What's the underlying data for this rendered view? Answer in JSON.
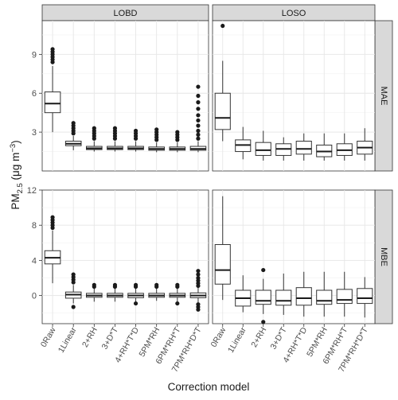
{
  "chart_data": {
    "type": "box",
    "ylabel_main": "PM",
    "ylabel_sub": "2.5",
    "ylabel_unit": " (μg m",
    "ylabel_sup": "−3",
    "ylabel_close": ")",
    "xlabel": "Correction model",
    "facet_cols": [
      "LOBD",
      "LOSO"
    ],
    "facet_rows": [
      "MAE",
      "MBE"
    ],
    "categories": [
      "0Raw",
      "1Linear",
      "2+RH",
      "3+D*T",
      "4+RH*T*D",
      "5PM*RH",
      "6PM*RH*T",
      "7PM*RH*D*T"
    ],
    "rows": [
      {
        "name": "MAE",
        "ylim": [
          0,
          11.6
        ],
        "ticks": [
          3,
          6,
          9
        ],
        "tick_labels": [
          "3",
          "6",
          "9"
        ],
        "panels": [
          {
            "col": "LOBD",
            "boxes": [
              {
                "lo": 3.0,
                "q1": 4.5,
                "med": 5.2,
                "q3": 6.1,
                "hi": 8.1,
                "out": [
                  8.4,
                  8.6,
                  8.8,
                  9.0,
                  9.2,
                  9.4
                ]
              },
              {
                "lo": 1.6,
                "q1": 1.95,
                "med": 2.1,
                "q3": 2.3,
                "hi": 2.7,
                "out": [
                  2.9,
                  3.1,
                  3.3,
                  3.5,
                  3.7
                ]
              },
              {
                "lo": 1.5,
                "q1": 1.65,
                "med": 1.75,
                "q3": 1.9,
                "hi": 2.3,
                "out": [
                  2.5,
                  2.7,
                  2.9,
                  3.1,
                  3.3
                ]
              },
              {
                "lo": 1.5,
                "q1": 1.65,
                "med": 1.75,
                "q3": 1.9,
                "hi": 2.3,
                "out": [
                  2.5,
                  2.7,
                  2.9,
                  3.1,
                  3.3
                ]
              },
              {
                "lo": 1.5,
                "q1": 1.65,
                "med": 1.75,
                "q3": 1.9,
                "hi": 2.3,
                "out": [
                  2.5,
                  2.7,
                  2.9,
                  3.1
                ]
              },
              {
                "lo": 1.45,
                "q1": 1.6,
                "med": 1.7,
                "q3": 1.85,
                "hi": 2.2,
                "out": [
                  2.4,
                  2.6,
                  2.8,
                  3.0,
                  3.2
                ]
              },
              {
                "lo": 1.45,
                "q1": 1.6,
                "med": 1.7,
                "q3": 1.85,
                "hi": 2.2,
                "out": [
                  2.4,
                  2.6,
                  2.8,
                  3.0
                ]
              },
              {
                "lo": 1.45,
                "q1": 1.6,
                "med": 1.7,
                "q3": 1.9,
                "hi": 2.3,
                "out": [
                  2.5,
                  2.8,
                  3.1,
                  3.5,
                  3.9,
                  4.3,
                  4.8,
                  5.3,
                  5.8,
                  6.5
                ]
              }
            ]
          },
          {
            "col": "LOSO",
            "boxes": [
              {
                "lo": 2.3,
                "q1": 3.2,
                "med": 4.1,
                "q3": 6.0,
                "hi": 8.5,
                "out": [
                  11.2
                ]
              },
              {
                "lo": 0.9,
                "q1": 1.5,
                "med": 2.0,
                "q3": 2.4,
                "hi": 3.4,
                "out": []
              },
              {
                "lo": 0.8,
                "q1": 1.2,
                "med": 1.6,
                "q3": 2.2,
                "hi": 3.1,
                "out": []
              },
              {
                "lo": 0.8,
                "q1": 1.2,
                "med": 1.7,
                "q3": 2.1,
                "hi": 2.6,
                "out": []
              },
              {
                "lo": 0.8,
                "q1": 1.3,
                "med": 1.7,
                "q3": 2.3,
                "hi": 2.9,
                "out": []
              },
              {
                "lo": 0.8,
                "q1": 1.1,
                "med": 1.5,
                "q3": 2.0,
                "hi": 2.9,
                "out": []
              },
              {
                "lo": 0.8,
                "q1": 1.2,
                "med": 1.6,
                "q3": 2.1,
                "hi": 2.9,
                "out": []
              },
              {
                "lo": 0.8,
                "q1": 1.3,
                "med": 1.8,
                "q3": 2.3,
                "hi": 3.3,
                "out": []
              }
            ]
          }
        ]
      },
      {
        "name": "MBE",
        "ylim": [
          -3.2,
          12.0
        ],
        "ticks": [
          0,
          4,
          8,
          12
        ],
        "tick_labels": [
          "0",
          "4",
          "8",
          "12"
        ],
        "panels": [
          {
            "col": "LOBD",
            "boxes": [
              {
                "lo": 1.4,
                "q1": 3.6,
                "med": 4.3,
                "q3": 5.1,
                "hi": 7.4,
                "out": [
                  7.7,
                  8.0,
                  8.3,
                  8.6,
                  8.9
                ]
              },
              {
                "lo": -0.9,
                "q1": -0.3,
                "med": 0.1,
                "q3": 0.4,
                "hi": 1.2,
                "out": [
                  -1.3,
                  1.5,
                  1.8,
                  2.1,
                  2.4
                ]
              },
              {
                "lo": -0.7,
                "q1": -0.2,
                "med": 0.0,
                "q3": 0.25,
                "hi": 0.8,
                "out": [
                  1.0,
                  1.2
                ]
              },
              {
                "lo": -0.7,
                "q1": -0.2,
                "med": 0.0,
                "q3": 0.25,
                "hi": 0.8,
                "out": [
                  1.0,
                  1.2
                ]
              },
              {
                "lo": -0.7,
                "q1": -0.25,
                "med": 0.0,
                "q3": 0.25,
                "hi": 0.8,
                "out": [
                  -0.9,
                  1.0,
                  1.2
                ]
              },
              {
                "lo": -0.6,
                "q1": -0.2,
                "med": 0.0,
                "q3": 0.25,
                "hi": 0.8,
                "out": [
                  1.0,
                  1.2
                ]
              },
              {
                "lo": -0.7,
                "q1": -0.2,
                "med": 0.0,
                "q3": 0.25,
                "hi": 0.8,
                "out": [
                  -0.9,
                  1.0,
                  1.2
                ]
              },
              {
                "lo": -0.8,
                "q1": -0.25,
                "med": 0.0,
                "q3": 0.3,
                "hi": 0.9,
                "out": [
                  -1.0,
                  -1.3,
                  -1.6,
                  1.1,
                  1.4,
                  1.7,
                  2.0,
                  2.4,
                  2.8
                ]
              }
            ]
          },
          {
            "col": "LOSO",
            "boxes": [
              {
                "lo": -0.5,
                "q1": 1.3,
                "med": 2.9,
                "q3": 5.8,
                "hi": 11.3,
                "out": []
              },
              {
                "lo": -1.9,
                "q1": -1.2,
                "med": -0.3,
                "q3": 0.6,
                "hi": 2.3,
                "out": []
              },
              {
                "lo": -2.1,
                "q1": -1.0,
                "med": -0.6,
                "q3": 0.6,
                "hi": 1.9,
                "out": [
                  -3.0,
                  2.9
                ]
              },
              {
                "lo": -2.2,
                "q1": -1.1,
                "med": -0.6,
                "q3": 0.6,
                "hi": 2.5,
                "out": []
              },
              {
                "lo": -2.4,
                "q1": -1.1,
                "med": -0.3,
                "q3": 0.9,
                "hi": 2.7,
                "out": []
              },
              {
                "lo": -2.4,
                "q1": -1.0,
                "med": -0.6,
                "q3": 0.6,
                "hi": 2.7,
                "out": []
              },
              {
                "lo": -2.4,
                "q1": -0.9,
                "med": -0.5,
                "q3": 0.7,
                "hi": 2.7,
                "out": []
              },
              {
                "lo": -2.5,
                "q1": -0.9,
                "med": -0.3,
                "q3": 0.8,
                "hi": 2.1,
                "out": []
              }
            ]
          }
        ]
      }
    ]
  }
}
